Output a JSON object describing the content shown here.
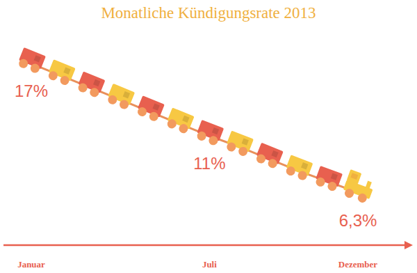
{
  "chart_data": {
    "type": "line",
    "title": "Monatliche Kündigungsrate 2013",
    "categories": [
      "Januar",
      null,
      null,
      null,
      null,
      null,
      "Juli",
      null,
      null,
      null,
      null,
      "Dezember"
    ],
    "values": [
      17,
      16,
      15,
      14,
      13,
      12,
      11,
      10.1,
      9.1,
      8.1,
      7.2,
      6.3
    ],
    "value_labels": [
      "17%",
      null,
      null,
      null,
      null,
      null,
      "11%",
      null,
      null,
      null,
      null,
      "6,3%"
    ],
    "colors": [
      "#e8604f",
      "#f7c843",
      "#e8604f",
      "#f7c843",
      "#e8604f",
      "#f7c843",
      "#e8604f",
      "#f7c843",
      "#e8604f",
      "#f7c843",
      "#e8604f",
      "#f7c843"
    ],
    "marker": "train",
    "ylim": [
      5,
      18
    ],
    "tick_labels": "x"
  }
}
